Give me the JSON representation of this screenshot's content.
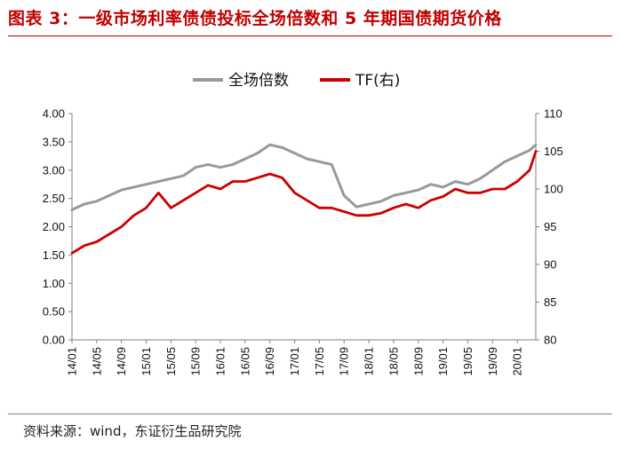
{
  "title": "图表 3：一级市场利率债债投标全场倍数和 5 年期国债期货价格",
  "source": "资料来源：wind，东证衍生品研究院",
  "colors": {
    "title": "#c00000",
    "series_left": "#999999",
    "series_right": "#cc0000"
  },
  "chart_data": {
    "type": "line",
    "legend_position": "top-center",
    "grid": false,
    "x_range": [
      "2014-01",
      "2020-04"
    ],
    "x_ticks": [
      "14/01",
      "14/05",
      "14/09",
      "15/01",
      "15/05",
      "15/09",
      "16/01",
      "16/05",
      "16/09",
      "17/01",
      "17/05",
      "17/09",
      "18/01",
      "18/05",
      "18/09",
      "19/01",
      "19/05",
      "19/09",
      "20/01"
    ],
    "y_left": {
      "min": 0,
      "max": 4,
      "ticks": [
        "0.00",
        "0.50",
        "1.00",
        "1.50",
        "2.00",
        "2.50",
        "3.00",
        "3.50",
        "4.00"
      ]
    },
    "y_right": {
      "min": 80,
      "max": 110,
      "ticks": [
        "80",
        "85",
        "90",
        "95",
        "100",
        "105",
        "110"
      ]
    },
    "series": [
      {
        "name": "全场倍数",
        "axis": "left",
        "color": "#999999",
        "points": [
          [
            "2014-01",
            2.3
          ],
          [
            "2014-03",
            2.4
          ],
          [
            "2014-05",
            2.45
          ],
          [
            "2014-07",
            2.55
          ],
          [
            "2014-09",
            2.65
          ],
          [
            "2014-11",
            2.7
          ],
          [
            "2015-01",
            2.75
          ],
          [
            "2015-03",
            2.8
          ],
          [
            "2015-05",
            2.85
          ],
          [
            "2015-07",
            2.9
          ],
          [
            "2015-09",
            3.05
          ],
          [
            "2015-11",
            3.1
          ],
          [
            "2016-01",
            3.05
          ],
          [
            "2016-03",
            3.1
          ],
          [
            "2016-05",
            3.2
          ],
          [
            "2016-07",
            3.3
          ],
          [
            "2016-09",
            3.45
          ],
          [
            "2016-11",
            3.4
          ],
          [
            "2017-01",
            3.3
          ],
          [
            "2017-03",
            3.2
          ],
          [
            "2017-05",
            3.15
          ],
          [
            "2017-07",
            3.1
          ],
          [
            "2017-09",
            2.55
          ],
          [
            "2017-11",
            2.35
          ],
          [
            "2018-01",
            2.4
          ],
          [
            "2018-03",
            2.45
          ],
          [
            "2018-05",
            2.55
          ],
          [
            "2018-07",
            2.6
          ],
          [
            "2018-09",
            2.65
          ],
          [
            "2018-11",
            2.75
          ],
          [
            "2019-01",
            2.7
          ],
          [
            "2019-03",
            2.8
          ],
          [
            "2019-05",
            2.75
          ],
          [
            "2019-07",
            2.85
          ],
          [
            "2019-09",
            3.0
          ],
          [
            "2019-11",
            3.15
          ],
          [
            "2020-01",
            3.25
          ],
          [
            "2020-03",
            3.35
          ],
          [
            "2020-04",
            3.45
          ]
        ]
      },
      {
        "name": "TF(右)",
        "axis": "right",
        "color": "#cc0000",
        "points": [
          [
            "2014-01",
            91.5
          ],
          [
            "2014-03",
            92.5
          ],
          [
            "2014-05",
            93.0
          ],
          [
            "2014-07",
            94.0
          ],
          [
            "2014-09",
            95.0
          ],
          [
            "2014-11",
            96.5
          ],
          [
            "2015-01",
            97.5
          ],
          [
            "2015-03",
            99.5
          ],
          [
            "2015-05",
            97.5
          ],
          [
            "2015-07",
            98.5
          ],
          [
            "2015-09",
            99.5
          ],
          [
            "2015-11",
            100.5
          ],
          [
            "2016-01",
            100.0
          ],
          [
            "2016-03",
            101.0
          ],
          [
            "2016-05",
            101.0
          ],
          [
            "2016-07",
            101.5
          ],
          [
            "2016-09",
            102.0
          ],
          [
            "2016-11",
            101.5
          ],
          [
            "2017-01",
            99.5
          ],
          [
            "2017-03",
            98.5
          ],
          [
            "2017-05",
            97.5
          ],
          [
            "2017-07",
            97.5
          ],
          [
            "2017-09",
            97.0
          ],
          [
            "2017-11",
            96.5
          ],
          [
            "2018-01",
            96.5
          ],
          [
            "2018-03",
            96.8
          ],
          [
            "2018-05",
            97.5
          ],
          [
            "2018-07",
            98.0
          ],
          [
            "2018-09",
            97.5
          ],
          [
            "2018-11",
            98.5
          ],
          [
            "2019-01",
            99.0
          ],
          [
            "2019-03",
            100.0
          ],
          [
            "2019-05",
            99.5
          ],
          [
            "2019-07",
            99.5
          ],
          [
            "2019-09",
            100.0
          ],
          [
            "2019-11",
            100.0
          ],
          [
            "2020-01",
            101.0
          ],
          [
            "2020-03",
            102.5
          ],
          [
            "2020-04",
            105.0
          ]
        ]
      }
    ]
  }
}
